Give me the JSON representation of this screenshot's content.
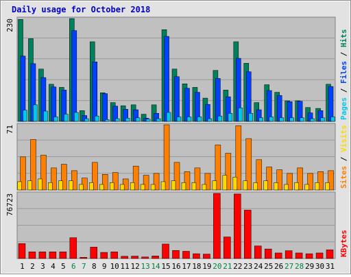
{
  "title": "Daily usage for October 2018",
  "colors": {
    "frame": "#e2e2e2",
    "plot_bg": "#c0c0c0",
    "grid": "#989898",
    "title_text": "#0000cc",
    "hits": "#00805c",
    "files": "#0040ff",
    "pages": "#00c8e8",
    "visits": "#ffd800",
    "sites": "#ff8000",
    "kbytes": "#ff0000",
    "day_label": "#000000",
    "weekend_label": "#008040"
  },
  "chart_data": [
    {
      "type": "bar",
      "panel": "hits-files-pages",
      "categories": [
        "1",
        "2",
        "3",
        "4",
        "5",
        "6",
        "7",
        "8",
        "9",
        "10",
        "11",
        "12",
        "13",
        "14",
        "15",
        "16",
        "17",
        "18",
        "19",
        "20",
        "21",
        "22",
        "23",
        "24",
        "25",
        "26",
        "27",
        "28",
        "29",
        "30",
        "31"
      ],
      "weekend_days": [
        "6",
        "7",
        "13",
        "14",
        "20",
        "21",
        "27",
        "28"
      ],
      "ymax_label": "230",
      "ylim": [
        0,
        230
      ],
      "side_label": [
        "Pages",
        "Files",
        "Hits"
      ],
      "series": [
        {
          "name": "Hits",
          "color_key": "hits",
          "values": [
            228,
            185,
            117,
            83,
            76,
            230,
            24,
            178,
            64,
            42,
            35,
            37,
            16,
            37,
            205,
            117,
            84,
            76,
            52,
            114,
            70,
            178,
            130,
            42,
            82,
            65,
            46,
            46,
            31,
            29,
            83
          ]
        },
        {
          "name": "Files",
          "color_key": "files",
          "values": [
            146,
            129,
            98,
            77,
            70,
            203,
            13,
            133,
            62,
            34,
            27,
            26,
            7,
            18,
            190,
            100,
            74,
            65,
            38,
            96,
            55,
            141,
            111,
            26,
            69,
            58,
            44,
            45,
            19,
            24,
            78
          ]
        },
        {
          "name": "Pages",
          "color_key": "pages",
          "values": [
            25,
            37,
            23,
            10,
            16,
            20,
            6,
            12,
            4,
            6,
            7,
            8,
            5,
            6,
            20,
            10,
            10,
            10,
            6,
            12,
            18,
            30,
            18,
            8,
            10,
            8,
            8,
            8,
            6,
            8,
            10
          ]
        }
      ]
    },
    {
      "type": "bar",
      "panel": "visits-sites",
      "categories": [
        "1",
        "2",
        "3",
        "4",
        "5",
        "6",
        "7",
        "8",
        "9",
        "10",
        "11",
        "12",
        "13",
        "14",
        "15",
        "16",
        "17",
        "18",
        "19",
        "20",
        "21",
        "22",
        "23",
        "24",
        "25",
        "26",
        "27",
        "28",
        "29",
        "30",
        "31"
      ],
      "ymax_label": "71",
      "ylim": [
        0,
        71
      ],
      "side_label": [
        "Sites",
        "Visits"
      ],
      "series": [
        {
          "name": "Sites",
          "color_key": "sites",
          "values": [
            36,
            55,
            38,
            24,
            28,
            21,
            13,
            30,
            17,
            19,
            12,
            26,
            16,
            18,
            71,
            30,
            20,
            24,
            18,
            49,
            40,
            70,
            56,
            33,
            25,
            22,
            18,
            24,
            18,
            20,
            21
          ]
        },
        {
          "name": "Visits",
          "color_key": "visits",
          "values": [
            9,
            10,
            12,
            8,
            10,
            10,
            6,
            8,
            6,
            8,
            6,
            8,
            6,
            6,
            9,
            10,
            8,
            8,
            6,
            10,
            16,
            14,
            10,
            8,
            10,
            8,
            6,
            8,
            6,
            8,
            8
          ]
        }
      ]
    },
    {
      "type": "bar",
      "panel": "kbytes",
      "categories": [
        "1",
        "2",
        "3",
        "4",
        "5",
        "6",
        "7",
        "8",
        "9",
        "10",
        "11",
        "12",
        "13",
        "14",
        "15",
        "16",
        "17",
        "18",
        "19",
        "20",
        "21",
        "22",
        "23",
        "24",
        "25",
        "26",
        "27",
        "28",
        "29",
        "30",
        "31"
      ],
      "ymax_label": "76723",
      "ylim": [
        0,
        76723
      ],
      "side_label": [
        "KBytes"
      ],
      "series": [
        {
          "name": "KBytes",
          "color_key": "kbytes",
          "values": [
            17500,
            7800,
            7800,
            7800,
            7800,
            24500,
            1400,
            13400,
            7200,
            7800,
            2600,
            2800,
            1800,
            3000,
            17000,
            9500,
            8500,
            5600,
            5200,
            76723,
            25400,
            76000,
            57000,
            14800,
            11200,
            6500,
            9200,
            6500,
            5600,
            6500,
            10200
          ]
        }
      ]
    }
  ]
}
